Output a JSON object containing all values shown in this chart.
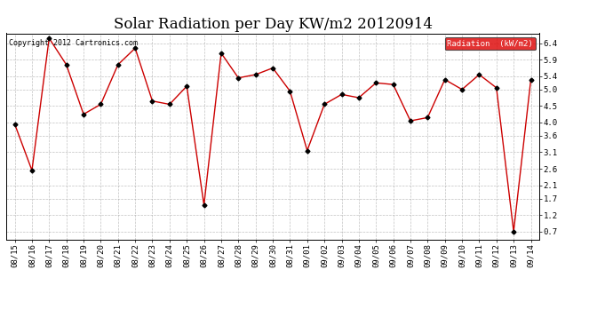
{
  "title": "Solar Radiation per Day KW/m2 20120914",
  "copyright": "Copyright 2012 Cartronics.com",
  "legend_label": "Radiation  (kW/m2)",
  "x_labels": [
    "08/15",
    "08/16",
    "08/17",
    "08/18",
    "08/19",
    "08/20",
    "08/21",
    "08/22",
    "08/23",
    "08/24",
    "08/25",
    "08/26",
    "08/27",
    "08/28",
    "08/29",
    "08/30",
    "08/31",
    "09/01",
    "09/02",
    "09/03",
    "09/04",
    "09/05",
    "09/06",
    "09/07",
    "09/08",
    "09/09",
    "09/10",
    "09/11",
    "09/12",
    "09/13",
    "09/14"
  ],
  "y_values": [
    3.95,
    2.55,
    6.55,
    5.75,
    4.25,
    4.55,
    5.75,
    6.25,
    4.65,
    4.55,
    5.1,
    1.5,
    6.1,
    5.35,
    5.45,
    5.65,
    4.95,
    3.15,
    4.55,
    4.85,
    4.75,
    5.2,
    5.15,
    4.05,
    4.15,
    5.3,
    5.0,
    5.45,
    5.05,
    0.7,
    5.3
  ],
  "ylim": [
    0.45,
    6.7
  ],
  "yticks": [
    0.7,
    1.2,
    1.7,
    2.1,
    2.6,
    3.1,
    3.6,
    4.0,
    4.5,
    5.0,
    5.4,
    5.9,
    6.4
  ],
  "line_color": "#cc0000",
  "marker_color": "#000000",
  "bg_color": "#ffffff",
  "plot_bg_color": "#ffffff",
  "grid_color": "#999999",
  "title_fontsize": 12,
  "tick_fontsize": 6.5,
  "legend_bg": "#dd0000",
  "legend_text_color": "#ffffff"
}
